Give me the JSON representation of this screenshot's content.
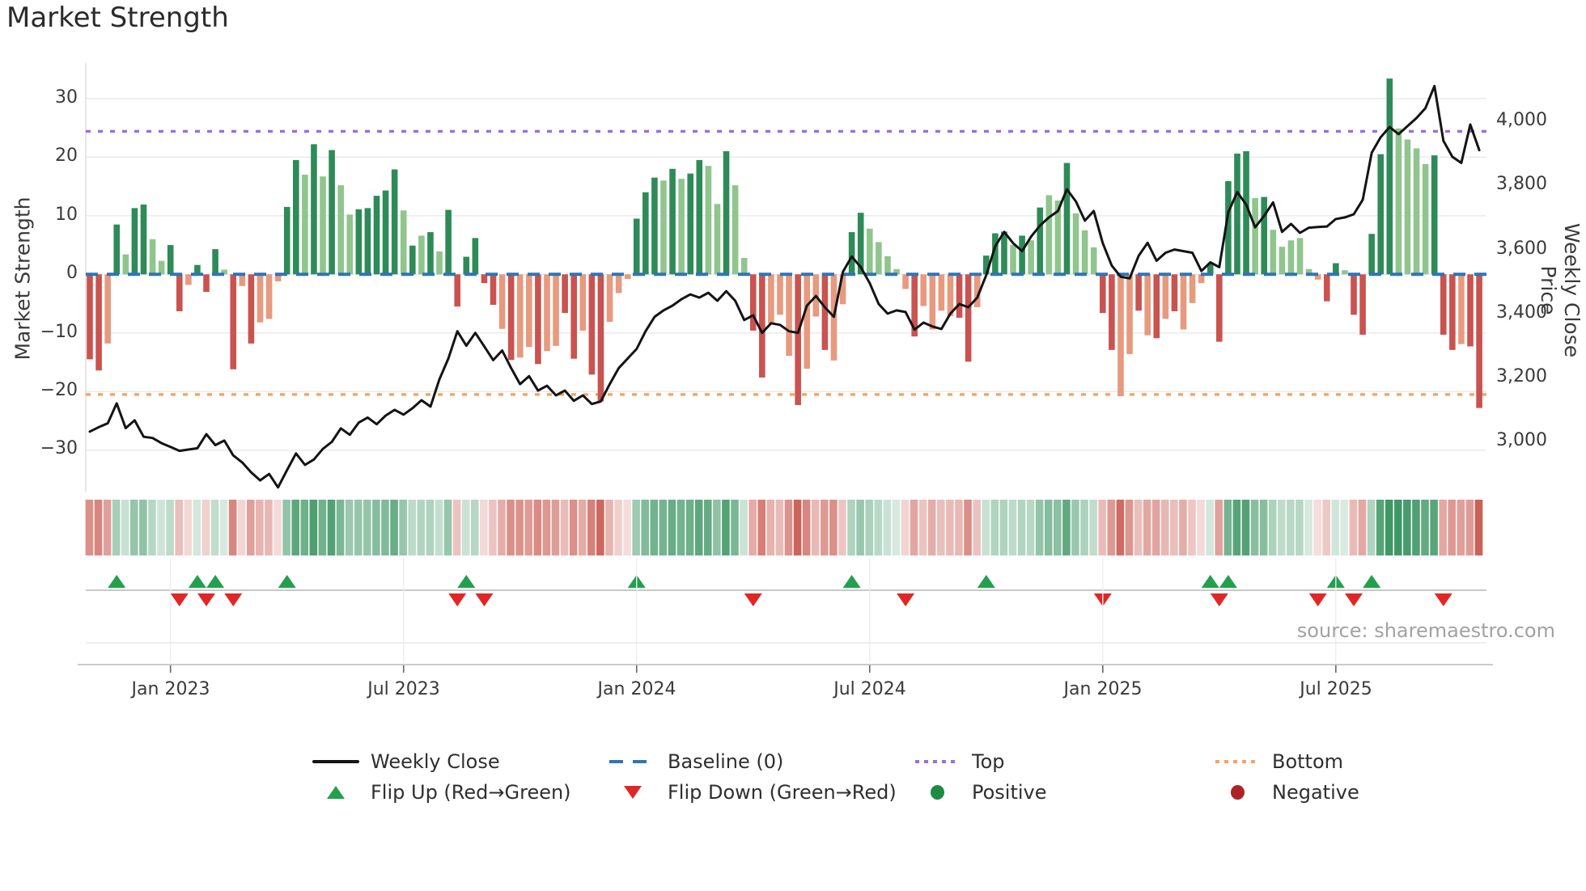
{
  "title": "Market Strength",
  "source": "source: sharemaestro.com",
  "axes": {
    "left_label": "Market Strength",
    "right_label": "Weekly Close Price",
    "left_ticks": [
      "30",
      "20",
      "10",
      "0",
      "−10",
      "−20",
      "−30"
    ],
    "right_ticks": [
      "4,000",
      "3,800",
      "3,600",
      "3,400",
      "3,200",
      "3,000"
    ],
    "x_ticks": [
      "Jan 2023",
      "Jul 2023",
      "Jan 2024",
      "Jul 2024",
      "Jan 2025",
      "Jul 2025"
    ]
  },
  "legend": {
    "row1": [
      {
        "label": "Weekly Close",
        "swatch": "black-line"
      },
      {
        "label": "Baseline (0)",
        "swatch": "blue-dashes"
      },
      {
        "label": "Top",
        "swatch": "purple-dots"
      },
      {
        "label": "Bottom",
        "swatch": "orange-dots"
      }
    ],
    "row2": [
      {
        "label": "Flip Up (Red→Green)",
        "swatch": "green-up-triangle"
      },
      {
        "label": "Flip Down (Green→Red)",
        "swatch": "red-down-triangle"
      },
      {
        "label": "Positive",
        "swatch": "green-circle"
      },
      {
        "label": "Negative",
        "swatch": "red-circle"
      }
    ]
  },
  "colors": {
    "bar_green_dark": "#2e8b57",
    "bar_green_light": "#90c58d",
    "bar_red_dark": "#c95350",
    "bar_red_salmon": "#e79a7e",
    "baseline_blue": "#2e75b5",
    "top_purple": "#9a6fd8",
    "bottom_orange": "#f4a460",
    "price_line": "#141414",
    "flip_up_green": "#22a04e",
    "flip_down_red": "#e12726",
    "positive_green": "#1e8b45",
    "negative_red": "#ad2426",
    "grid": "#e9e9ee"
  },
  "chart_data": {
    "type": [
      "bar",
      "line",
      "heatmap",
      "scatter"
    ],
    "title": "Market Strength",
    "x_start_date": "2022-10-31",
    "x_interval": "weekly",
    "n_weeks": 156,
    "x_tick_weeks": [
      9,
      35,
      61,
      87,
      113,
      139
    ],
    "x_tick_labels": [
      "Jan 2023",
      "Jul 2023",
      "Jan 2024",
      "Jul 2024",
      "Jan 2025",
      "Jul 2025"
    ],
    "left_axis": {
      "label": "Market Strength",
      "ticks": [
        30,
        20,
        10,
        0,
        -10,
        -20,
        -30
      ],
      "range": [
        -37.1,
        36.0
      ],
      "grid": true
    },
    "right_axis": {
      "label": "Weekly Close Price",
      "ticks": [
        4000,
        3800,
        3600,
        3400,
        3200,
        3000
      ],
      "range": [
        2845,
        4182
      ],
      "grid": false
    },
    "baseline": 0,
    "top_line": 24.4,
    "bottom_line": -20.5,
    "legend_position": "bottom-center",
    "series": [
      {
        "name": "Market Strength (weekly bars)",
        "type": "bar",
        "values": [
          -14.5,
          -16.4,
          -11.8,
          8.5,
          3.4,
          11.3,
          11.9,
          6.0,
          2.3,
          5.0,
          -6.3,
          -1.8,
          1.6,
          -3.0,
          4.3,
          0.8,
          -16.2,
          -2.0,
          -11.8,
          -8.2,
          -7.6,
          -1.2,
          11.5,
          19.5,
          17.0,
          22.2,
          16.7,
          21.2,
          15.2,
          10.2,
          11.1,
          11.3,
          13.4,
          14.3,
          17.9,
          10.9,
          4.9,
          6.6,
          7.2,
          3.9,
          11.0,
          -5.5,
          3.0,
          6.2,
          -1.5,
          -5.2,
          -9.3,
          -14.6,
          -14.2,
          -12.4,
          -15.3,
          -13.1,
          -12.2,
          -6.6,
          -14.4,
          -9.6,
          -17.1,
          -21.7,
          -8.1,
          -3.2,
          -0.8,
          9.5,
          14.0,
          16.5,
          16.0,
          18.0,
          16.3,
          17.2,
          19.5,
          18.5,
          12.0,
          21.0,
          15.2,
          2.8,
          -9.6,
          -17.6,
          -8.4,
          -6.9,
          -13.9,
          -22.3,
          -16.1,
          -7.2,
          -12.9,
          -14.7,
          -5.1,
          7.2,
          10.5,
          7.8,
          5.5,
          3.1,
          0.9,
          -2.5,
          -10.6,
          -5.4,
          -9.4,
          -6.2,
          -7.1,
          -7.4,
          -14.9,
          -5.6,
          3.2,
          7.0,
          7.3,
          5.0,
          6.6,
          5.8,
          11.4,
          13.5,
          12.6,
          19.0,
          10.4,
          7.5,
          4.6,
          -6.6,
          -12.9,
          -20.8,
          -13.6,
          -6.2,
          -10.4,
          -10.9,
          -7.6,
          -6.3,
          -9.4,
          -4.9,
          -1.5,
          1.8,
          -11.5,
          15.9,
          20.6,
          21.0,
          13.0,
          13.2,
          7.6,
          4.7,
          5.8,
          6.2,
          0.9,
          -0.9,
          -4.6,
          1.9,
          0.7,
          -6.9,
          -10.3,
          6.9,
          20.5,
          33.4,
          24.9,
          23.0,
          21.5,
          18.8,
          20.3,
          -10.3,
          -12.9,
          -11.9,
          -12.3,
          -22.8
        ],
        "bar_tone": "ddldlddllddldddldldlllddldldlldddddldldlddddddldlldllddlddllldddldlddlldllddllldlldllddllllldllllddldddldldlldlllddlldldldllldddddldlllllldd ldddddlllldddldd"
      },
      {
        "name": "Weekly Close",
        "type": "line",
        "axis": "right",
        "values": [
          3032,
          3046,
          3058,
          3120,
          3043,
          3067,
          3016,
          3012,
          2996,
          2984,
          2972,
          2976,
          2980,
          3024,
          2990,
          3004,
          2958,
          2936,
          2905,
          2880,
          2900,
          2858,
          2912,
          2964,
          2928,
          2945,
          2978,
          3000,
          3042,
          3022,
          3060,
          3076,
          3055,
          3082,
          3100,
          3085,
          3105,
          3130,
          3110,
          3195,
          3260,
          3345,
          3300,
          3340,
          3298,
          3255,
          3285,
          3230,
          3180,
          3205,
          3160,
          3175,
          3145,
          3160,
          3128,
          3145,
          3118,
          3126,
          3180,
          3230,
          3260,
          3290,
          3345,
          3390,
          3410,
          3425,
          3445,
          3460,
          3450,
          3465,
          3440,
          3470,
          3440,
          3380,
          3395,
          3340,
          3370,
          3365,
          3345,
          3340,
          3425,
          3455,
          3420,
          3390,
          3530,
          3578,
          3545,
          3495,
          3430,
          3400,
          3410,
          3405,
          3350,
          3372,
          3360,
          3352,
          3400,
          3430,
          3420,
          3450,
          3520,
          3610,
          3655,
          3620,
          3595,
          3640,
          3675,
          3700,
          3720,
          3788,
          3750,
          3690,
          3720,
          3620,
          3550,
          3515,
          3510,
          3580,
          3621,
          3565,
          3590,
          3600,
          3595,
          3590,
          3533,
          3560,
          3545,
          3716,
          3779,
          3740,
          3669,
          3705,
          3747,
          3655,
          3680,
          3652,
          3668,
          3670,
          3672,
          3695,
          3700,
          3710,
          3755,
          3902,
          3950,
          3982,
          3960,
          3985,
          4010,
          4041,
          4110,
          3939,
          3889,
          3870,
          3990,
          3910
        ]
      },
      {
        "name": "Flip Up (Red→Green)",
        "type": "scatter",
        "marker": "triangle-up",
        "weeks": [
          3,
          12,
          14,
          22,
          42,
          61,
          85,
          100,
          125,
          127,
          139,
          143
        ]
      },
      {
        "name": "Flip Down (Green→Red)",
        "type": "scatter",
        "marker": "triangle-down",
        "weeks": [
          10,
          13,
          16,
          41,
          44,
          74,
          91,
          113,
          126,
          137,
          141,
          151
        ]
      },
      {
        "name": "Strength heatmap strip",
        "type": "heatmap",
        "note": "one cell per week, red-to-green shade proportional to bar value"
      }
    ]
  }
}
